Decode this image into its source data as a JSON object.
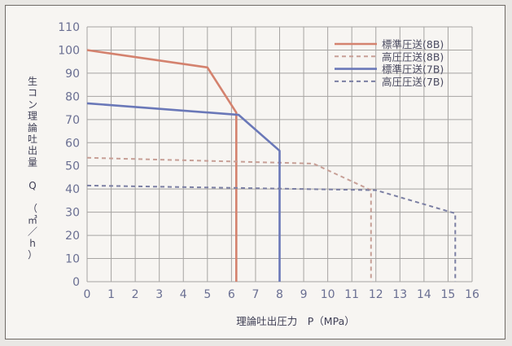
{
  "chart_data": {
    "type": "line",
    "title": "",
    "xlabel": "理論吐出圧力　P（MPa）",
    "ylabel_chars": [
      "生",
      "コ",
      "ン",
      "理",
      "論",
      "吐",
      "出",
      "量",
      "",
      "Q",
      "",
      "（",
      "㎥",
      "／",
      "h",
      "）"
    ],
    "x_ticks": [
      "0",
      "1",
      "2",
      "3",
      "4",
      "5",
      "6",
      "7",
      "8",
      "9",
      "10",
      "11",
      "12",
      "13",
      "14",
      "15",
      "16"
    ],
    "y_ticks": [
      "0",
      "10",
      "20",
      "30",
      "40",
      "50",
      "60",
      "70",
      "80",
      "90",
      "100",
      "110"
    ],
    "xlim": [
      0,
      16
    ],
    "ylim": [
      0,
      110
    ],
    "grid": true,
    "legend_position": "top-right",
    "series": [
      {
        "name": "標準圧送(8B)",
        "color": "#d4826e",
        "style": "solid",
        "x": [
          0,
          5,
          6.2,
          6.2
        ],
        "y": [
          100,
          92.5,
          73,
          0
        ]
      },
      {
        "name": "高圧圧送(8B)",
        "color": "#c79f96",
        "style": "dashed",
        "x": [
          0,
          9.4,
          11.8,
          11.8
        ],
        "y": [
          53.5,
          51,
          39.5,
          0
        ]
      },
      {
        "name": "標準圧送(7B)",
        "color": "#6a78b8",
        "style": "solid",
        "x": [
          0,
          6.3,
          8,
          8
        ],
        "y": [
          77,
          72,
          56.5,
          0
        ]
      },
      {
        "name": "高圧圧送(7B)",
        "color": "#7b7fa3",
        "style": "dashed",
        "x": [
          0,
          12,
          15.3,
          15.3
        ],
        "y": [
          41.5,
          39.5,
          29.5,
          0
        ]
      }
    ]
  }
}
